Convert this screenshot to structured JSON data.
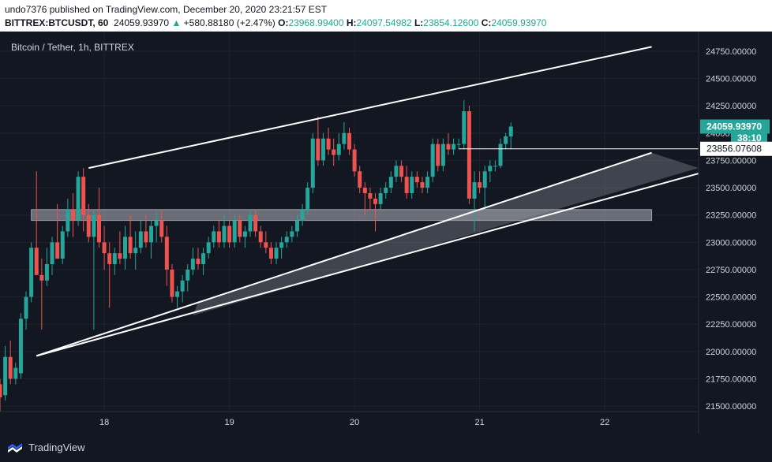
{
  "header": {
    "publisher": "undo7376 published on TradingView.com, December 20, 2020 23:21:57 EST",
    "symbol": "BITTREX:BTCUSDT, 60",
    "last": "24059.93970",
    "change": "+580.88180 (+2.47%)",
    "open_label": "O:",
    "open": "23968.99400",
    "high_label": "H:",
    "high": "24097.54982",
    "low_label": "L:",
    "low": "23854.12600",
    "close_label": "C:",
    "close": "24059.93970"
  },
  "chart_title": "Bitcoin / Tether, 1h, BITTREX",
  "footer": {
    "brand": "TradingView"
  },
  "colors": {
    "background": "#131722",
    "up": "#26a69a",
    "down": "#ef5350",
    "drawing": "#ffffff",
    "zone": "#b2b5be",
    "text": "#d1d4dc"
  },
  "chart_data": {
    "type": "candlestick",
    "x_axis_labels": [
      "18",
      "19",
      "20",
      "21",
      "22"
    ],
    "y_axis_labels": [
      "24750.00000",
      "24500.00000",
      "24250.00000",
      "24000.00000",
      "23750.00000",
      "23500.00000",
      "23250.00000",
      "23000.00000",
      "22750.00000",
      "22500.00000",
      "22250.00000",
      "22000.00000",
      "21750.00000",
      "21500.00000"
    ],
    "ylim": [
      21450,
      24930
    ],
    "xlim": [
      "2020-12-17 04:00",
      "2020-12-22 18:00"
    ],
    "price_tags": [
      {
        "label": "24059.93970",
        "value": 24059.9397,
        "style": "last"
      },
      {
        "label": "38:10",
        "value": 23955,
        "style": "countdown"
      },
      {
        "label": "23856.07608",
        "value": 23856.07608,
        "style": "line"
      }
    ],
    "horizontal_line": {
      "value": 23856.07608,
      "from": "2020-12-20 20:00"
    },
    "support_zone": {
      "from": "2020-12-17 10:00",
      "to": "2020-12-22 09:00",
      "low": 23200,
      "high": 23300
    },
    "trendlines": [
      {
        "name": "channel-top",
        "x1": "2020-12-17 21:00",
        "y1": 23680,
        "x2": "2020-12-22 09:00",
        "y2": 24790
      },
      {
        "name": "wedge-upper",
        "x1": "2020-12-17 11:00",
        "y1": 21960,
        "x2": "2020-12-22 09:00",
        "y2": 23820
      },
      {
        "name": "wedge-lower",
        "x1": "2020-12-17 11:00",
        "y1": 21960,
        "x2": "2020-12-22 18:00",
        "y2": 23630
      }
    ],
    "wedge_fill": [
      [
        "2020-12-18 18:00",
        22450
      ],
      [
        "2020-12-22 09:00",
        23820
      ],
      [
        "2020-12-22 18:00",
        23680
      ],
      [
        "2020-12-18 17:00",
        22330
      ]
    ],
    "candles": [
      {
        "t": "2020-12-17 04:00",
        "o": 21700,
        "h": 21750,
        "l": 21450,
        "c": 21580
      },
      {
        "t": "2020-12-17 05:00",
        "o": 21600,
        "h": 22050,
        "l": 21550,
        "c": 21950
      },
      {
        "t": "2020-12-17 06:00",
        "o": 21950,
        "h": 22100,
        "l": 21700,
        "c": 21750
      },
      {
        "t": "2020-12-17 07:00",
        "o": 21750,
        "h": 21900,
        "l": 21700,
        "c": 21850
      },
      {
        "t": "2020-12-17 08:00",
        "o": 21800,
        "h": 22350,
        "l": 21750,
        "c": 22300
      },
      {
        "t": "2020-12-17 09:00",
        "o": 22300,
        "h": 22550,
        "l": 22200,
        "c": 22500
      },
      {
        "t": "2020-12-17 10:00",
        "o": 22500,
        "h": 23000,
        "l": 22450,
        "c": 22950
      },
      {
        "t": "2020-12-17 11:00",
        "o": 22950,
        "h": 23650,
        "l": 22700,
        "c": 22700
      },
      {
        "t": "2020-12-17 12:00",
        "o": 22700,
        "h": 22850,
        "l": 22200,
        "c": 22650
      },
      {
        "t": "2020-12-17 13:00",
        "o": 22650,
        "h": 22950,
        "l": 22600,
        "c": 22800
      },
      {
        "t": "2020-12-17 14:00",
        "o": 22800,
        "h": 23050,
        "l": 22700,
        "c": 23000
      },
      {
        "t": "2020-12-17 15:00",
        "o": 23000,
        "h": 23350,
        "l": 22850,
        "c": 22850
      },
      {
        "t": "2020-12-17 16:00",
        "o": 22850,
        "h": 23150,
        "l": 22800,
        "c": 23100
      },
      {
        "t": "2020-12-17 17:00",
        "o": 23100,
        "h": 23400,
        "l": 23050,
        "c": 23300
      },
      {
        "t": "2020-12-17 18:00",
        "o": 23300,
        "h": 23450,
        "l": 23050,
        "c": 23200
      },
      {
        "t": "2020-12-17 19:00",
        "o": 23200,
        "h": 23650,
        "l": 23150,
        "c": 23600
      },
      {
        "t": "2020-12-17 20:00",
        "o": 23600,
        "h": 23680,
        "l": 23100,
        "c": 23250
      },
      {
        "t": "2020-12-17 21:00",
        "o": 23250,
        "h": 23350,
        "l": 23000,
        "c": 23050
      },
      {
        "t": "2020-12-17 22:00",
        "o": 23050,
        "h": 23300,
        "l": 22200,
        "c": 23250
      },
      {
        "t": "2020-12-17 23:00",
        "o": 23250,
        "h": 23500,
        "l": 22950,
        "c": 23000
      },
      {
        "t": "2020-12-18 00:00",
        "o": 23000,
        "h": 23150,
        "l": 22750,
        "c": 22900
      },
      {
        "t": "2020-12-18 01:00",
        "o": 22900,
        "h": 23000,
        "l": 22400,
        "c": 22800
      },
      {
        "t": "2020-12-18 02:00",
        "o": 22800,
        "h": 22950,
        "l": 22700,
        "c": 22900
      },
      {
        "t": "2020-12-18 03:00",
        "o": 22900,
        "h": 23100,
        "l": 22800,
        "c": 22850
      },
      {
        "t": "2020-12-18 04:00",
        "o": 22850,
        "h": 23150,
        "l": 22750,
        "c": 23050
      },
      {
        "t": "2020-12-18 05:00",
        "o": 23050,
        "h": 23250,
        "l": 22850,
        "c": 22900
      },
      {
        "t": "2020-12-18 06:00",
        "o": 22900,
        "h": 23100,
        "l": 22750,
        "c": 22950
      },
      {
        "t": "2020-12-18 07:00",
        "o": 22950,
        "h": 23200,
        "l": 22900,
        "c": 23100
      },
      {
        "t": "2020-12-18 08:00",
        "o": 23100,
        "h": 23250,
        "l": 22950,
        "c": 23000
      },
      {
        "t": "2020-12-18 09:00",
        "o": 23000,
        "h": 23200,
        "l": 22850,
        "c": 23150
      },
      {
        "t": "2020-12-18 10:00",
        "o": 23150,
        "h": 23280,
        "l": 23000,
        "c": 23200
      },
      {
        "t": "2020-12-18 11:00",
        "o": 23200,
        "h": 23300,
        "l": 23000,
        "c": 23050
      },
      {
        "t": "2020-12-18 12:00",
        "o": 23050,
        "h": 23150,
        "l": 22600,
        "c": 22750
      },
      {
        "t": "2020-12-18 13:00",
        "o": 22750,
        "h": 22800,
        "l": 22450,
        "c": 22500
      },
      {
        "t": "2020-12-18 14:00",
        "o": 22500,
        "h": 22600,
        "l": 22400,
        "c": 22550
      },
      {
        "t": "2020-12-18 15:00",
        "o": 22550,
        "h": 22700,
        "l": 22450,
        "c": 22650
      },
      {
        "t": "2020-12-18 16:00",
        "o": 22650,
        "h": 22800,
        "l": 22550,
        "c": 22750
      },
      {
        "t": "2020-12-18 17:00",
        "o": 22750,
        "h": 22950,
        "l": 22700,
        "c": 22850
      },
      {
        "t": "2020-12-18 18:00",
        "o": 22850,
        "h": 22950,
        "l": 22750,
        "c": 22800
      },
      {
        "t": "2020-12-18 19:00",
        "o": 22800,
        "h": 22950,
        "l": 22700,
        "c": 22900
      },
      {
        "t": "2020-12-18 20:00",
        "o": 22900,
        "h": 23050,
        "l": 22850,
        "c": 23000
      },
      {
        "t": "2020-12-18 21:00",
        "o": 23000,
        "h": 23150,
        "l": 22950,
        "c": 23100
      },
      {
        "t": "2020-12-18 22:00",
        "o": 23100,
        "h": 23200,
        "l": 22950,
        "c": 23000
      },
      {
        "t": "2020-12-18 23:00",
        "o": 23000,
        "h": 23250,
        "l": 22950,
        "c": 23150
      },
      {
        "t": "2020-12-19 00:00",
        "o": 23150,
        "h": 23200,
        "l": 22950,
        "c": 23000
      },
      {
        "t": "2020-12-19 01:00",
        "o": 23000,
        "h": 23250,
        "l": 22950,
        "c": 23200
      },
      {
        "t": "2020-12-19 02:00",
        "o": 23200,
        "h": 23250,
        "l": 23000,
        "c": 23050
      },
      {
        "t": "2020-12-19 03:00",
        "o": 23050,
        "h": 23150,
        "l": 22950,
        "c": 23100
      },
      {
        "t": "2020-12-19 04:00",
        "o": 23100,
        "h": 23300,
        "l": 23050,
        "c": 23250
      },
      {
        "t": "2020-12-19 05:00",
        "o": 23250,
        "h": 23300,
        "l": 23050,
        "c": 23100
      },
      {
        "t": "2020-12-19 06:00",
        "o": 23100,
        "h": 23150,
        "l": 22950,
        "c": 23000
      },
      {
        "t": "2020-12-19 07:00",
        "o": 23000,
        "h": 23100,
        "l": 22900,
        "c": 22950
      },
      {
        "t": "2020-12-19 08:00",
        "o": 22950,
        "h": 23000,
        "l": 22800,
        "c": 22850
      },
      {
        "t": "2020-12-19 09:00",
        "o": 22850,
        "h": 23000,
        "l": 22800,
        "c": 22950
      },
      {
        "t": "2020-12-19 10:00",
        "o": 22950,
        "h": 23050,
        "l": 22850,
        "c": 23000
      },
      {
        "t": "2020-12-19 11:00",
        "o": 23000,
        "h": 23100,
        "l": 22950,
        "c": 23050
      },
      {
        "t": "2020-12-19 12:00",
        "o": 23050,
        "h": 23150,
        "l": 23000,
        "c": 23100
      },
      {
        "t": "2020-12-19 13:00",
        "o": 23100,
        "h": 23250,
        "l": 23050,
        "c": 23200
      },
      {
        "t": "2020-12-19 14:00",
        "o": 23200,
        "h": 23350,
        "l": 23150,
        "c": 23300
      },
      {
        "t": "2020-12-19 15:00",
        "o": 23300,
        "h": 23550,
        "l": 23250,
        "c": 23500
      },
      {
        "t": "2020-12-19 16:00",
        "o": 23500,
        "h": 24000,
        "l": 23450,
        "c": 23950
      },
      {
        "t": "2020-12-19 17:00",
        "o": 23950,
        "h": 24150,
        "l": 23700,
        "c": 23750
      },
      {
        "t": "2020-12-19 18:00",
        "o": 23750,
        "h": 24000,
        "l": 23700,
        "c": 23950
      },
      {
        "t": "2020-12-19 19:00",
        "o": 23950,
        "h": 24050,
        "l": 23800,
        "c": 23850
      },
      {
        "t": "2020-12-19 20:00",
        "o": 23850,
        "h": 23950,
        "l": 23700,
        "c": 23800
      },
      {
        "t": "2020-12-19 21:00",
        "o": 23800,
        "h": 24000,
        "l": 23750,
        "c": 23900
      },
      {
        "t": "2020-12-19 22:00",
        "o": 23900,
        "h": 24100,
        "l": 23850,
        "c": 24000
      },
      {
        "t": "2020-12-19 23:00",
        "o": 24000,
        "h": 24050,
        "l": 23800,
        "c": 23850
      },
      {
        "t": "2020-12-20 00:00",
        "o": 23850,
        "h": 23900,
        "l": 23600,
        "c": 23650
      },
      {
        "t": "2020-12-20 01:00",
        "o": 23650,
        "h": 23700,
        "l": 23450,
        "c": 23500
      },
      {
        "t": "2020-12-20 02:00",
        "o": 23500,
        "h": 23550,
        "l": 23250,
        "c": 23450
      },
      {
        "t": "2020-12-20 03:00",
        "o": 23450,
        "h": 23500,
        "l": 23300,
        "c": 23400
      },
      {
        "t": "2020-12-20 04:00",
        "o": 23400,
        "h": 23450,
        "l": 23100,
        "c": 23350
      },
      {
        "t": "2020-12-20 05:00",
        "o": 23350,
        "h": 23500,
        "l": 23300,
        "c": 23450
      },
      {
        "t": "2020-12-20 06:00",
        "o": 23450,
        "h": 23550,
        "l": 23400,
        "c": 23500
      },
      {
        "t": "2020-12-20 07:00",
        "o": 23500,
        "h": 23650,
        "l": 23450,
        "c": 23600
      },
      {
        "t": "2020-12-20 08:00",
        "o": 23600,
        "h": 23750,
        "l": 23550,
        "c": 23700
      },
      {
        "t": "2020-12-20 09:00",
        "o": 23700,
        "h": 23750,
        "l": 23550,
        "c": 23600
      },
      {
        "t": "2020-12-20 10:00",
        "o": 23600,
        "h": 23700,
        "l": 23400,
        "c": 23450
      },
      {
        "t": "2020-12-20 11:00",
        "o": 23450,
        "h": 23650,
        "l": 23400,
        "c": 23600
      },
      {
        "t": "2020-12-20 12:00",
        "o": 23600,
        "h": 23650,
        "l": 23500,
        "c": 23550
      },
      {
        "t": "2020-12-20 13:00",
        "o": 23550,
        "h": 23600,
        "l": 23450,
        "c": 23500
      },
      {
        "t": "2020-12-20 14:00",
        "o": 23500,
        "h": 23650,
        "l": 23450,
        "c": 23600
      },
      {
        "t": "2020-12-20 15:00",
        "o": 23600,
        "h": 23950,
        "l": 23550,
        "c": 23900
      },
      {
        "t": "2020-12-20 16:00",
        "o": 23900,
        "h": 23950,
        "l": 23650,
        "c": 23700
      },
      {
        "t": "2020-12-20 17:00",
        "o": 23700,
        "h": 23950,
        "l": 23650,
        "c": 23900
      },
      {
        "t": "2020-12-20 18:00",
        "o": 23900,
        "h": 24000,
        "l": 23800,
        "c": 23850
      },
      {
        "t": "2020-12-20 19:00",
        "o": 23850,
        "h": 23950,
        "l": 23800,
        "c": 23900
      },
      {
        "t": "2020-12-20 20:00",
        "o": 23900,
        "h": 23950,
        "l": 23850,
        "c": 23900
      },
      {
        "t": "2020-12-20 21:00",
        "o": 23900,
        "h": 24300,
        "l": 23850,
        "c": 24200
      },
      {
        "t": "2020-12-20 22:00",
        "o": 24200,
        "h": 24250,
        "l": 23350,
        "c": 23400
      },
      {
        "t": "2020-12-20 23:00",
        "o": 23400,
        "h": 23650,
        "l": 23100,
        "c": 23550
      },
      {
        "t": "2020-12-21 00:00",
        "o": 23550,
        "h": 23650,
        "l": 23450,
        "c": 23500
      },
      {
        "t": "2020-12-21 01:00",
        "o": 23500,
        "h": 23700,
        "l": 23300,
        "c": 23650
      },
      {
        "t": "2020-12-21 02:00",
        "o": 23650,
        "h": 23750,
        "l": 23550,
        "c": 23700
      },
      {
        "t": "2020-12-21 03:00",
        "o": 23700,
        "h": 23750,
        "l": 23650,
        "c": 23700
      },
      {
        "t": "2020-12-21 04:00",
        "o": 23700,
        "h": 23950,
        "l": 23680,
        "c": 23900
      },
      {
        "t": "2020-12-21 05:00",
        "o": 23900,
        "h": 24000,
        "l": 23850,
        "c": 23970
      },
      {
        "t": "2020-12-21 06:00",
        "o": 23968.994,
        "h": 24097.54982,
        "l": 23854.126,
        "c": 24059.9397
      }
    ]
  }
}
